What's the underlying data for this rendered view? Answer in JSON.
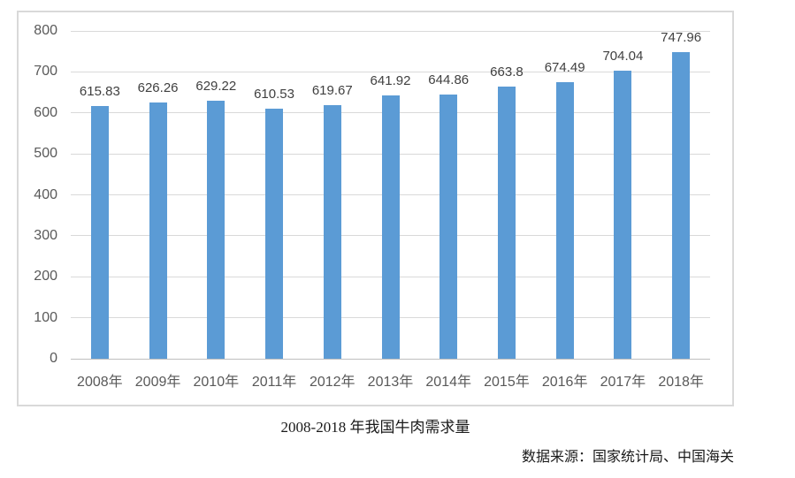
{
  "page": {
    "title": "2008-2018 年我国牛肉需求量",
    "source": "数据来源：国家统计局、中国海关"
  },
  "chart_data": {
    "type": "bar",
    "title": "2008-2018 年我国牛肉需求量",
    "categories": [
      "2008年",
      "2009年",
      "2010年",
      "2011年",
      "2012年",
      "2013年",
      "2014年",
      "2015年",
      "2016年",
      "2017年",
      "2018年"
    ],
    "values": [
      615.83,
      626.26,
      629.22,
      610.53,
      619.67,
      641.92,
      644.86,
      663.8,
      674.49,
      704.04,
      747.96
    ],
    "value_labels": [
      "615.83",
      "626.26",
      "629.22",
      "610.53",
      "619.67",
      "641.92",
      "644.86",
      "663.8",
      "674.49",
      "704.04",
      "747.96"
    ],
    "xlabel": "",
    "ylabel": "",
    "ylim": [
      0,
      800
    ],
    "yticks": [
      0,
      100,
      200,
      300,
      400,
      500,
      600,
      700,
      800
    ],
    "grid": true,
    "legend_position": "none",
    "bar_color": "#5b9bd5",
    "gridline_color": "#d9d9d9",
    "axis_line_color": "#bfbfbf",
    "value_label_color": "#404040",
    "tick_label_color": "#595959"
  }
}
